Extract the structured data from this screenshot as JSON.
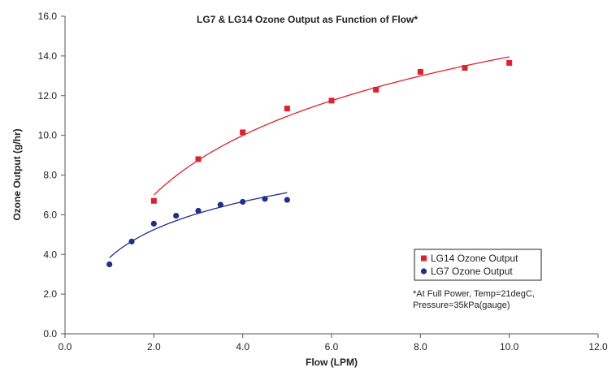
{
  "chart_data": {
    "type": "scatter",
    "title": "LG7 & LG14 Ozone Output as Function of Flow*",
    "xlabel": "Flow (LPM)",
    "ylabel": "Ozone Output (g/hr)",
    "xlim": [
      0,
      12
    ],
    "ylim": [
      0,
      16
    ],
    "xticks": [
      0,
      2,
      4,
      6,
      8,
      10,
      12
    ],
    "xtick_labels": [
      "0.0",
      "2.0",
      "4.0",
      "6.0",
      "8.0",
      "10.0",
      "12.0"
    ],
    "yticks": [
      0,
      2,
      4,
      6,
      8,
      10,
      12,
      14,
      16
    ],
    "ytick_labels": [
      "0.0",
      "2.0",
      "4.0",
      "6.0",
      "8.0",
      "10.0",
      "12.0",
      "14.0",
      "16.0"
    ],
    "grid": false,
    "legend_position": "lower-right",
    "series": [
      {
        "name": "LG14 Ozone Output",
        "marker": "square",
        "color": "#e0202a",
        "x": [
          2,
          3,
          4,
          5,
          6,
          7,
          8,
          9,
          10
        ],
        "y": [
          6.7,
          8.8,
          10.15,
          11.35,
          11.75,
          12.3,
          13.2,
          13.4,
          13.65
        ],
        "trendline": {
          "type": "logarithmic",
          "x_range": [
            2,
            10
          ]
        }
      },
      {
        "name": "LG7 Ozone Output",
        "marker": "circle",
        "color": "#1f2f8f",
        "x": [
          1,
          1.5,
          2,
          2.5,
          3,
          3.5,
          4,
          4.5,
          5
        ],
        "y": [
          3.5,
          4.65,
          5.55,
          5.95,
          6.2,
          6.5,
          6.65,
          6.8,
          6.75
        ],
        "trendline": {
          "type": "logarithmic",
          "x_range": [
            1,
            5
          ]
        }
      }
    ],
    "annotations": [
      "*At Full Power, Temp=21degC,",
      "Pressure=35kPa(gauge)"
    ]
  }
}
